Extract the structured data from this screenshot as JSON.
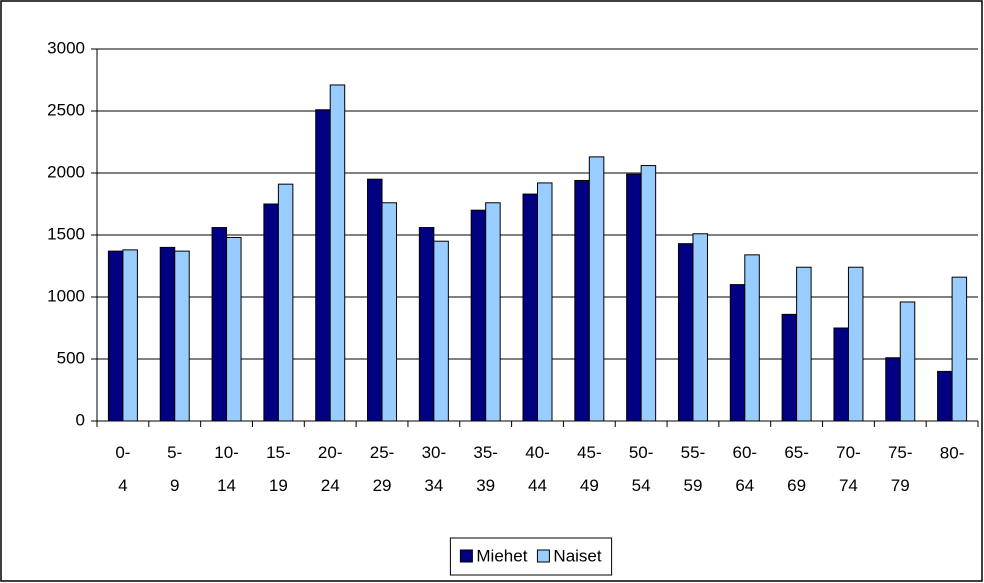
{
  "chart_data": {
    "type": "bar",
    "categories": [
      "0-4",
      "5-9",
      "10-14",
      "15-19",
      "20-24",
      "25-29",
      "30-34",
      "35-39",
      "40-44",
      "45-49",
      "50-54",
      "55-59",
      "60-64",
      "65-69",
      "70-74",
      "75-79",
      "80-"
    ],
    "series": [
      {
        "name": "Miehet",
        "color": "#000080",
        "values": [
          1370,
          1400,
          1560,
          1750,
          2510,
          1950,
          1560,
          1700,
          1830,
          1940,
          1990,
          1430,
          1100,
          860,
          750,
          510,
          400
        ]
      },
      {
        "name": "Naiset",
        "color": "#99ccff",
        "values": [
          1380,
          1370,
          1480,
          1910,
          2710,
          1760,
          1450,
          1760,
          1920,
          2130,
          2060,
          1510,
          1340,
          1240,
          1240,
          960,
          1160
        ]
      }
    ],
    "ylim": [
      0,
      3000
    ],
    "yticks": [
      0,
      500,
      1000,
      1500,
      2000,
      2500,
      3000
    ],
    "grid": true,
    "legend": "bottom"
  }
}
